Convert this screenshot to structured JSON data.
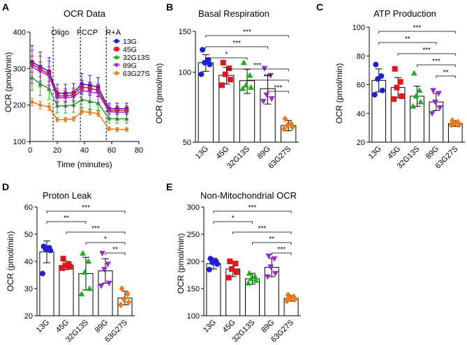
{
  "chart_data": [
    {
      "id": "A",
      "panel_letter": "A",
      "type": "line",
      "title": "OCR Data",
      "xlabel": "Time (minutes)",
      "ylabel": "OCR (pmol/min)",
      "xlim": [
        0,
        80
      ],
      "ylim": [
        100,
        400
      ],
      "xticks": [
        0,
        20,
        40,
        60,
        80
      ],
      "yticks": [
        100,
        200,
        300,
        400
      ],
      "injections": [
        {
          "label": "Oligo",
          "x": 17
        },
        {
          "label": "FCCP",
          "x": 37
        },
        {
          "label": "R+A",
          "x": 56
        }
      ],
      "x": [
        1.5,
        7.5,
        14,
        20,
        26,
        32,
        38,
        44,
        50,
        58,
        64,
        71
      ],
      "series": [
        {
          "name": "13G",
          "color": "#1f1fd6",
          "marker": "circle",
          "values": [
            318,
            305,
            292,
            232,
            232,
            234,
            258,
            254,
            249,
            190,
            190,
            190
          ],
          "err": [
            45,
            40,
            38,
            25,
            25,
            25,
            28,
            27,
            26,
            15,
            15,
            15
          ]
        },
        {
          "name": "45G",
          "color": "#e3141b",
          "marker": "square",
          "values": [
            312,
            298,
            285,
            225,
            225,
            228,
            250,
            246,
            240,
            185,
            185,
            185
          ],
          "err": [
            22,
            20,
            20,
            15,
            15,
            15,
            16,
            15,
            15,
            10,
            10,
            10
          ]
        },
        {
          "name": "32G13S",
          "color": "#14b014",
          "marker": "triangle",
          "values": [
            275,
            258,
            245,
            198,
            198,
            200,
            215,
            210,
            205,
            163,
            162,
            162
          ],
          "err": [
            35,
            32,
            30,
            20,
            20,
            20,
            22,
            21,
            20,
            12,
            12,
            12
          ]
        },
        {
          "name": "89G",
          "color": "#9c27d6",
          "marker": "triangle-down",
          "values": [
            305,
            292,
            280,
            220,
            220,
            222,
            240,
            236,
            232,
            182,
            180,
            180
          ],
          "err": [
            45,
            42,
            40,
            25,
            25,
            25,
            28,
            27,
            26,
            18,
            18,
            18
          ]
        },
        {
          "name": "63G27S",
          "color": "#f07a1a",
          "marker": "diamond",
          "values": [
            208,
            200,
            195,
            160,
            160,
            162,
            182,
            180,
            176,
            135,
            133,
            133
          ],
          "err": [
            10,
            10,
            10,
            6,
            6,
            6,
            7,
            7,
            7,
            5,
            5,
            5
          ]
        }
      ]
    },
    {
      "id": "B",
      "panel_letter": "B",
      "type": "bar",
      "scale": "log",
      "title": "Basal Respiration",
      "ylabel": "OCR (pmol/min)",
      "ylim": [
        50,
        150
      ],
      "yticks": [
        50,
        100,
        150
      ],
      "categories": [
        "13G",
        "45G",
        "32G13S",
        "89G",
        "63G27S"
      ],
      "colors": [
        "#1f1fd6",
        "#e3141b",
        "#14b014",
        "#9c27d6",
        "#f07a1a"
      ],
      "markers": [
        "circle",
        "square",
        "triangle",
        "triangle-down",
        "diamond"
      ],
      "values": [
        110,
        97,
        92,
        85,
        59
      ],
      "sd": [
        9,
        8,
        11,
        12,
        3
      ],
      "points": [
        [
          125,
          113,
          110,
          108,
          98
        ],
        [
          110,
          104,
          98,
          93,
          88
        ],
        [
          110,
          97,
          88,
          86,
          85
        ],
        [
          104,
          97,
          80,
          77,
          75
        ],
        [
          63,
          60,
          59,
          58,
          57
        ]
      ],
      "significance": [
        {
          "from": 0,
          "to": 4,
          "label": "***"
        },
        {
          "from": 0,
          "to": 3,
          "label": "***"
        },
        {
          "from": 0,
          "to": 2,
          "label": "*"
        },
        {
          "from": 1,
          "to": 4,
          "label": "***"
        },
        {
          "from": 2,
          "to": 4,
          "label": "***"
        },
        {
          "from": 3,
          "to": 4,
          "label": "***"
        }
      ]
    },
    {
      "id": "C",
      "panel_letter": "C",
      "type": "bar",
      "scale": "linear",
      "title": "ATP Production",
      "ylabel": "OCR (pmol/min)",
      "ylim": [
        20,
        100
      ],
      "yticks": [
        20,
        40,
        60,
        80,
        100
      ],
      "categories": [
        "13G",
        "45G",
        "32G13S",
        "89G",
        "63G27S"
      ],
      "colors": [
        "#1f1fd6",
        "#e3141b",
        "#14b014",
        "#9c27d6",
        "#f07a1a"
      ],
      "markers": [
        "circle",
        "square",
        "triangle",
        "triangle-down",
        "diamond"
      ],
      "values": [
        63,
        58,
        52,
        48,
        33
      ],
      "sd": [
        8,
        7,
        7,
        6,
        2
      ],
      "points": [
        [
          74,
          66,
          64,
          56,
          53
        ],
        [
          71,
          62,
          58,
          52,
          50
        ],
        [
          68,
          56,
          52,
          48,
          45
        ],
        [
          56,
          54,
          48,
          44,
          40
        ],
        [
          35,
          34,
          33,
          32,
          32
        ]
      ],
      "significance": [
        {
          "from": 0,
          "to": 4,
          "label": "***"
        },
        {
          "from": 0,
          "to": 3,
          "label": "**"
        },
        {
          "from": 1,
          "to": 4,
          "label": "***"
        },
        {
          "from": 2,
          "to": 4,
          "label": "***"
        },
        {
          "from": 3,
          "to": 4,
          "label": "**"
        }
      ]
    },
    {
      "id": "D",
      "panel_letter": "D",
      "type": "bar",
      "scale": "linear",
      "title": "Proton Leak",
      "ylabel": "OCR (pmol/min)",
      "ylim": [
        20,
        60
      ],
      "yticks": [
        20,
        30,
        40,
        50,
        60
      ],
      "categories": [
        "13G",
        "45G",
        "32G13S",
        "89G",
        "63G27S"
      ],
      "colors": [
        "#1f1fd6",
        "#e3141b",
        "#14b014",
        "#9c27d6",
        "#f07a1a"
      ],
      "markers": [
        "circle",
        "square",
        "triangle",
        "triangle-down",
        "diamond"
      ],
      "values": [
        43.5,
        38.5,
        35.5,
        36.5,
        26.5
      ],
      "sd": [
        4,
        1.5,
        6,
        4.5,
        2.5
      ],
      "points": [
        [
          45.5,
          45,
          44.5,
          44,
          35.5
        ],
        [
          41,
          39,
          38.5,
          38,
          37.5
        ],
        [
          43,
          40,
          36,
          30,
          28
        ],
        [
          43,
          39,
          37,
          32,
          31
        ],
        [
          30,
          28,
          26,
          25,
          24
        ]
      ],
      "significance": [
        {
          "from": 0,
          "to": 4,
          "label": "***"
        },
        {
          "from": 0,
          "to": 2,
          "label": "**"
        },
        {
          "from": 1,
          "to": 4,
          "label": "***"
        },
        {
          "from": 2,
          "to": 4,
          "label": "*"
        },
        {
          "from": 3,
          "to": 4,
          "label": "**"
        }
      ]
    },
    {
      "id": "E",
      "panel_letter": "E",
      "type": "bar",
      "scale": "linear",
      "title": "Non-Mitochondrial OCR",
      "ylabel": "OCR (pmol/min)",
      "ylim": [
        100,
        300
      ],
      "yticks": [
        100,
        150,
        200,
        250,
        300
      ],
      "categories": [
        "13G",
        "45G",
        "32G13S",
        "89G",
        "63G27S"
      ],
      "colors": [
        "#1f1fd6",
        "#e3141b",
        "#14b014",
        "#9c27d6",
        "#f07a1a"
      ],
      "markers": [
        "circle",
        "square",
        "triangle",
        "triangle-down",
        "diamond"
      ],
      "values": [
        196,
        186,
        168,
        189,
        132
      ],
      "sd": [
        10,
        14,
        10,
        17,
        5
      ],
      "points": [
        [
          205,
          200,
          198,
          195,
          185
        ],
        [
          200,
          196,
          186,
          180,
          170
        ],
        [
          178,
          172,
          168,
          165,
          160
        ],
        [
          210,
          205,
          190,
          178,
          172
        ],
        [
          138,
          135,
          132,
          130,
          127
        ]
      ],
      "significance": [
        {
          "from": 0,
          "to": 4,
          "label": "***"
        },
        {
          "from": 0,
          "to": 2,
          "label": "*"
        },
        {
          "from": 1,
          "to": 4,
          "label": "***"
        },
        {
          "from": 2,
          "to": 4,
          "label": "**"
        },
        {
          "from": 3,
          "to": 4,
          "label": "***"
        }
      ]
    }
  ]
}
